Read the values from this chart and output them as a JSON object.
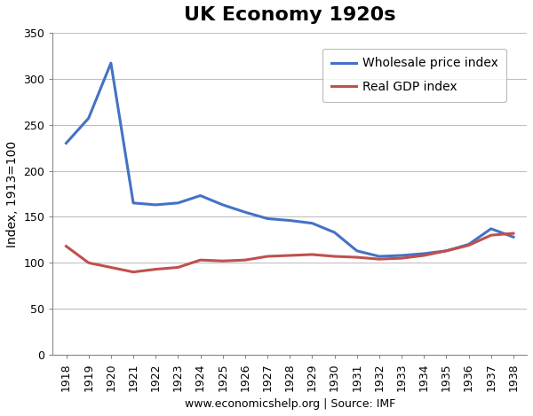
{
  "title": "UK Economy 1920s",
  "xlabel": "www.economicshelp.org | Source: IMF",
  "ylabel": "Index, 1913=100",
  "years": [
    1918,
    1919,
    1920,
    1921,
    1922,
    1923,
    1924,
    1925,
    1926,
    1927,
    1928,
    1929,
    1930,
    1931,
    1932,
    1933,
    1934,
    1935,
    1936,
    1937,
    1938
  ],
  "wholesale": [
    230,
    257,
    317,
    165,
    163,
    165,
    173,
    163,
    155,
    148,
    146,
    143,
    133,
    113,
    107,
    108,
    110,
    113,
    120,
    137,
    128
  ],
  "gdp": [
    118,
    100,
    95,
    90,
    93,
    95,
    103,
    102,
    103,
    107,
    108,
    109,
    107,
    106,
    104,
    105,
    108,
    113,
    119,
    130,
    132
  ],
  "wholesale_color": "#4472C4",
  "gdp_color": "#C0504D",
  "ylim": [
    0,
    350
  ],
  "yticks": [
    0,
    50,
    100,
    150,
    200,
    250,
    300,
    350
  ],
  "grid_color": "#C0C0C0",
  "bg_color": "#FFFFFF",
  "fig_bg_color": "#FFFFFF",
  "title_fontsize": 16,
  "axis_fontsize": 9,
  "ylabel_fontsize": 10,
  "xlabel_fontsize": 9,
  "linewidth": 2.2,
  "legend_labels": [
    "Wholesale price index",
    "Real GDP index"
  ],
  "legend_fontsize": 10
}
